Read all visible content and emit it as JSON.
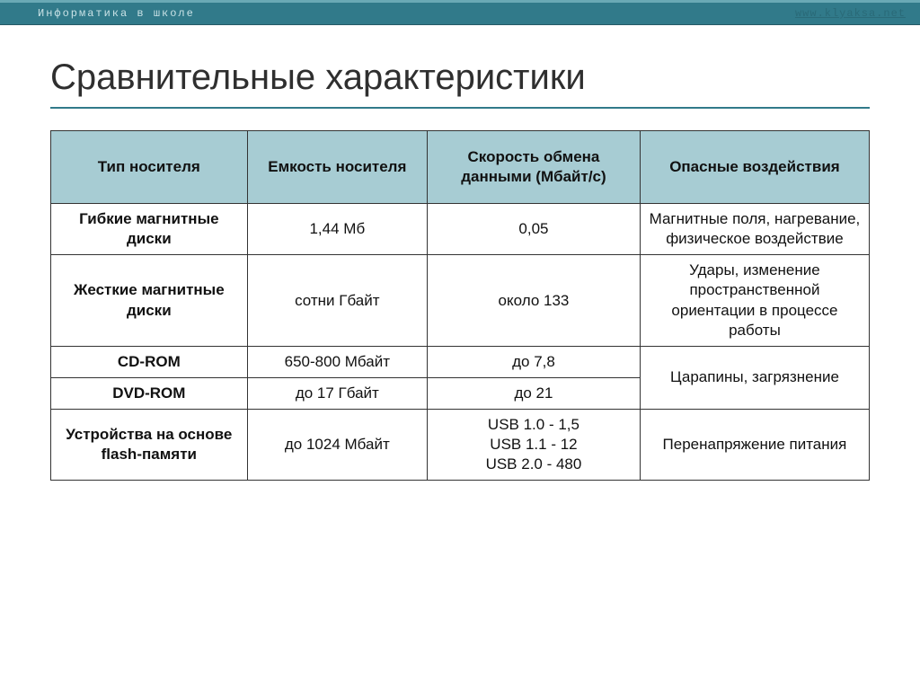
{
  "header": {
    "title": "Информатика в школе",
    "link": "www.klyaksa.net"
  },
  "slide": {
    "title": "Сравнительные характеристики"
  },
  "table": {
    "columns": {
      "type": "Тип носителя",
      "cap": "Емкость носителя",
      "speed": "Скорость обмена данными (Мбайт/с)",
      "hazard": "Опасные воздействия"
    },
    "rows": {
      "floppy": {
        "type": "Гибкие магнитные диски",
        "cap": "1,44 Мб",
        "speed": "0,05",
        "hazard": "Магнитные поля, нагревание, физическое воздействие"
      },
      "hdd": {
        "type": "Жесткие магнитные диски",
        "cap": "сотни Гбайт",
        "speed": "около 133",
        "hazard": "Удары, изменение пространственной ориентации в процессе работы"
      },
      "cdrom": {
        "type": "CD-ROM",
        "cap": "650-800 Мбайт",
        "speed": "до 7,8"
      },
      "dvdrom": {
        "type": "DVD-ROM",
        "cap": "до 17 Гбайт",
        "speed": "до 21"
      },
      "optical_hazard": "Царапины, загрязнение",
      "flash": {
        "type": "Устройства на основе flash-памяти",
        "cap": "до 1024 Мбайт",
        "speed": "USB 1.0 - 1,5\nUSB 1.1 - 12\nUSB 2.0 - 480",
        "hazard": "Перенапряжение питания"
      }
    }
  },
  "style": {
    "header_bg": "#317a8a",
    "header_text": "#c9e2e6",
    "link_color": "#2a6a78",
    "title_color": "#2f2f2f",
    "title_underline": "#317a8a",
    "th_bg": "#a7ccd3",
    "border_color": "#333333",
    "title_fontsize": 40,
    "cell_fontsize": 17,
    "header_font": "Courier New",
    "body_font": "Verdana"
  }
}
